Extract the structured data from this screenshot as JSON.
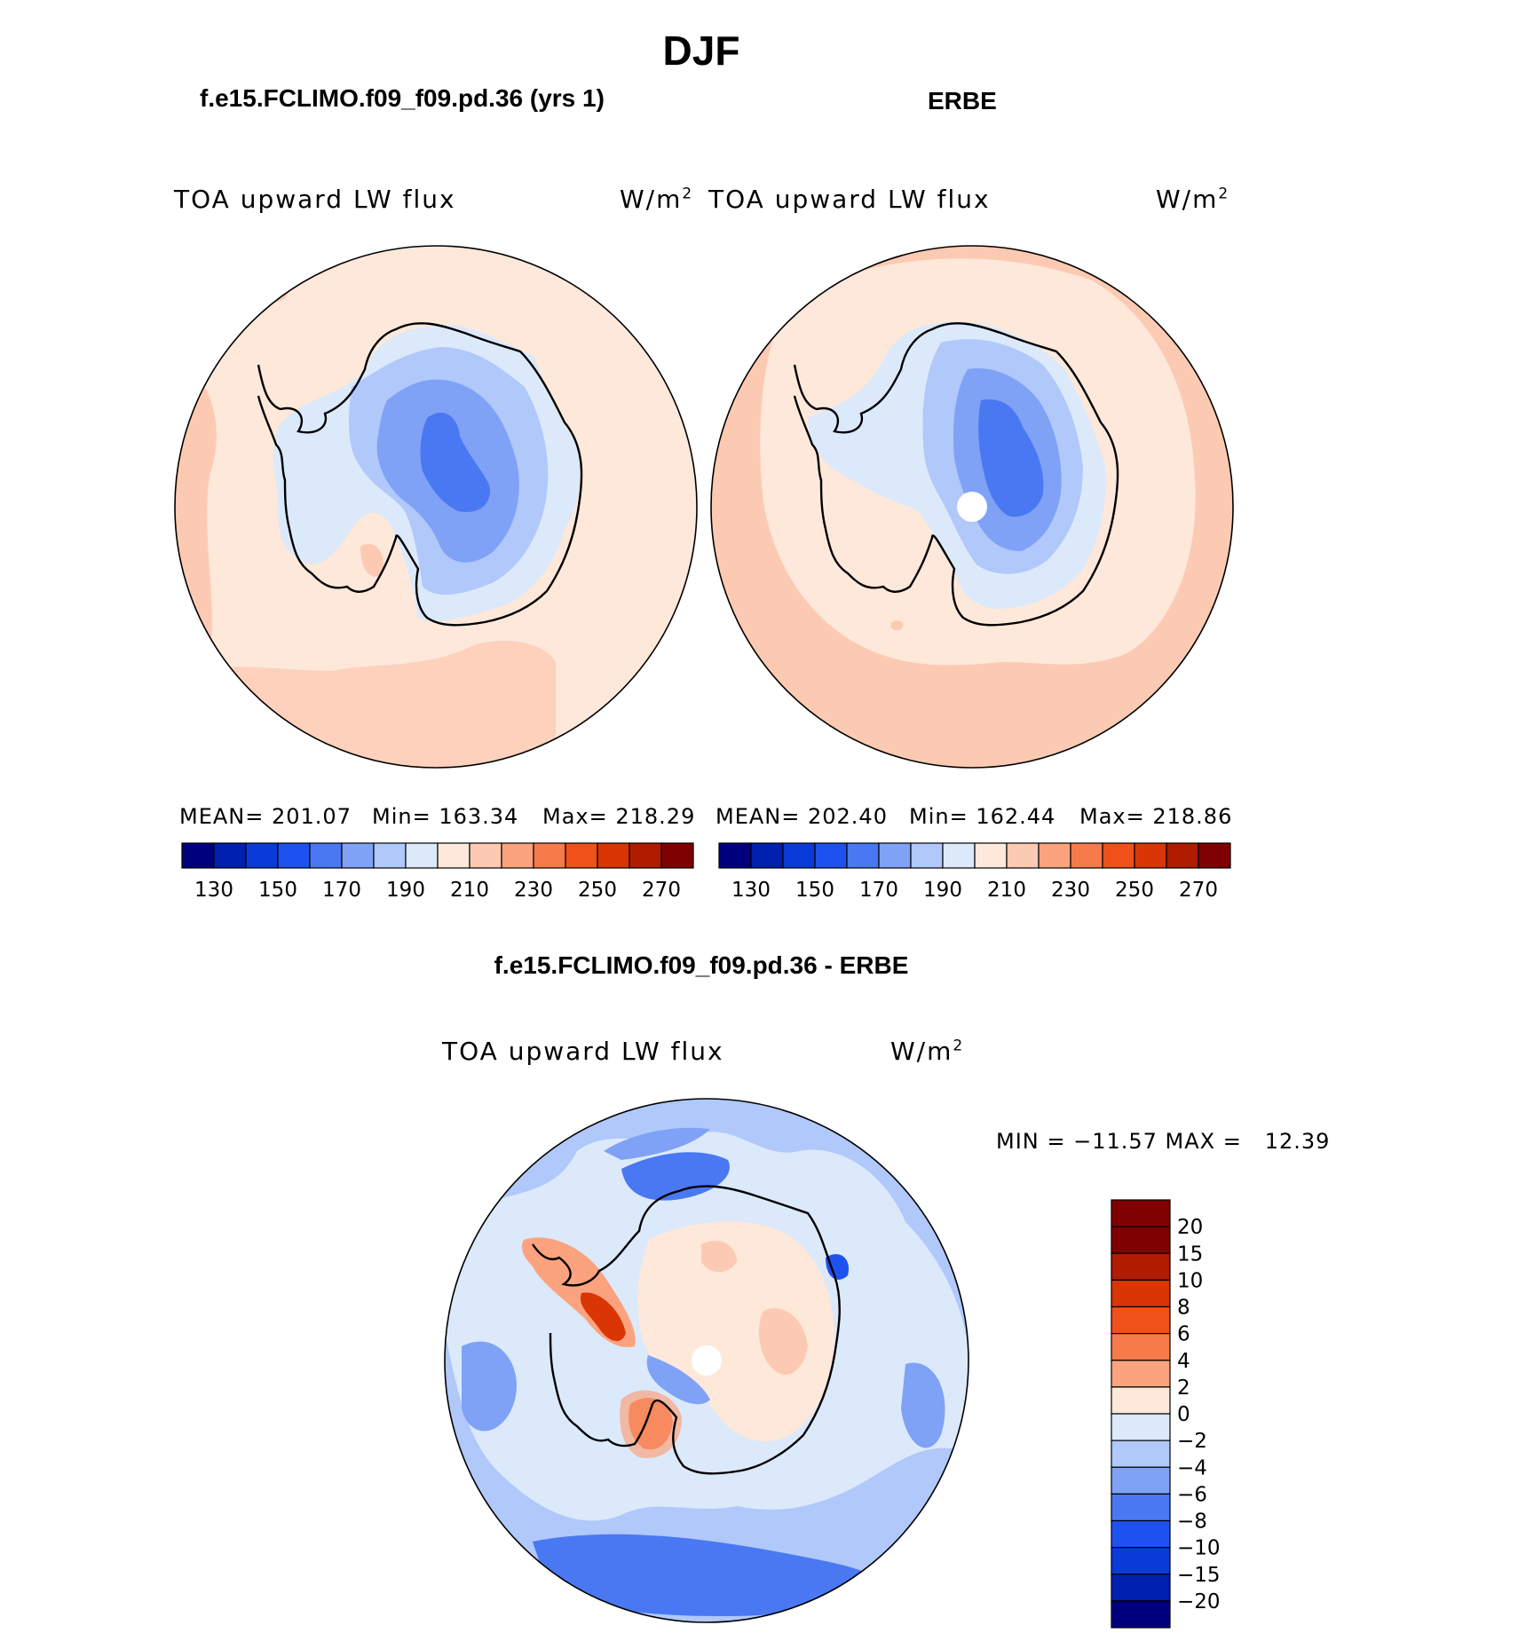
{
  "season": "DJF",
  "left_panel": {
    "header": "f.e15.FCLIMO.f09_f09.pd.36 (yrs 1)",
    "variable": "TOA upward LW flux",
    "units": "W/m",
    "units_sup": "2",
    "stats": {
      "mean": "MEAN= 201.07",
      "min": "Min= 163.34",
      "max": "Max= 218.29"
    }
  },
  "right_panel": {
    "header": "ERBE",
    "variable": "TOA upward LW flux",
    "units": "W/m",
    "units_sup": "2",
    "stats": {
      "mean": "MEAN= 202.40",
      "min": "Min= 162.44",
      "max": "Max= 218.86"
    }
  },
  "diff_panel": {
    "header": "f.e15.FCLIMO.f09_f09.pd.36 - ERBE",
    "variable": "TOA upward LW flux",
    "units": "W/m",
    "units_sup": "2",
    "minmax": "MIN = −11.57 MAX =   12.39"
  },
  "colorbar_abs": {
    "colors": [
      "#00007f",
      "#0020b0",
      "#0a3ad8",
      "#1e52f0",
      "#4a78f2",
      "#7fa2f6",
      "#b0c8fa",
      "#dbe9fb",
      "#fde8da",
      "#fccab2",
      "#fba37e",
      "#f77a4a",
      "#f0501a",
      "#d93505",
      "#b01c00",
      "#7f0000"
    ],
    "tick_labels": [
      "130",
      "150",
      "170",
      "190",
      "210",
      "230",
      "250",
      "270"
    ]
  },
  "colorbar_diff": {
    "colors": [
      "#7f0000",
      "#b01c00",
      "#d93505",
      "#f0501a",
      "#f77a4a",
      "#fba37e",
      "#fde8da",
      "#dbe9fb",
      "#b0c8fa",
      "#7fa2f6",
      "#4a78f2",
      "#1e52f0",
      "#0a3ad8",
      "#0020b0",
      "#00007f"
    ],
    "tick_labels": [
      "20",
      "15",
      "10",
      "8",
      "6",
      "4",
      "2",
      "0",
      "−2",
      "−4",
      "−6",
      "−8",
      "−10",
      "−15",
      "−20"
    ]
  }
}
